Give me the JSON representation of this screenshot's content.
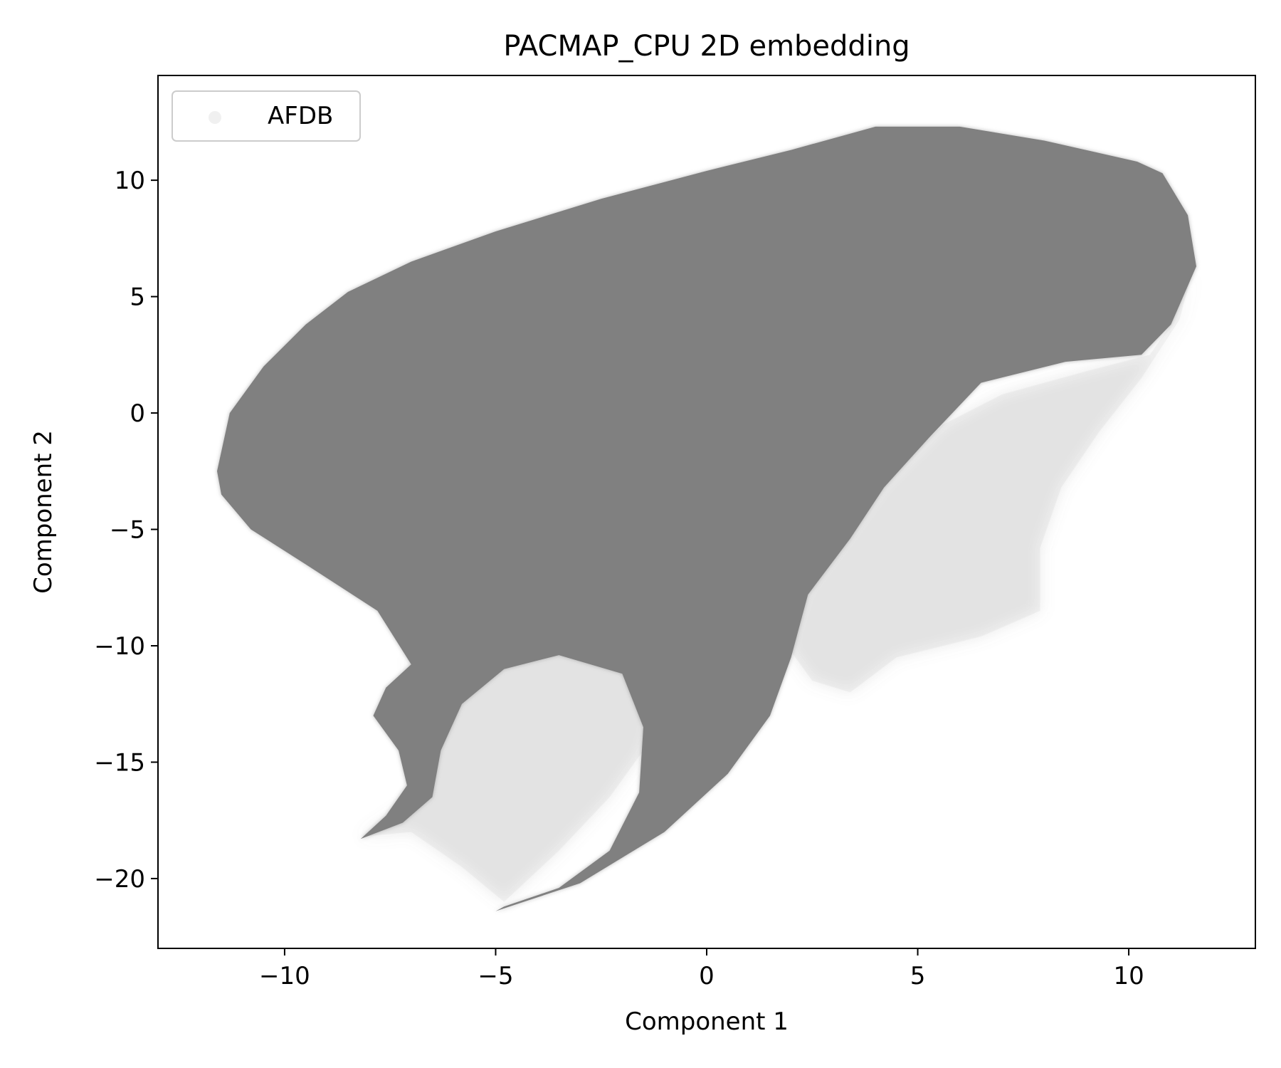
{
  "chart_data": {
    "type": "scatter",
    "title": "PACMAP_CPU 2D embedding",
    "xlabel": "Component 1",
    "ylabel": "Component 2",
    "xlim": [
      -13,
      13
    ],
    "ylim": [
      -23,
      14.5
    ],
    "xticks": [
      -10,
      -5,
      0,
      5,
      10
    ],
    "yticks": [
      10,
      5,
      0,
      -5,
      -10,
      -15,
      -20
    ],
    "xtick_labels": [
      "−10",
      "−5",
      "0",
      "5",
      "10"
    ],
    "ytick_labels": [
      "10",
      "5",
      "0",
      "−5",
      "−10",
      "−15",
      "−20"
    ],
    "grid": false,
    "legend_position": "top-left",
    "marker_color": "#808080",
    "series": [
      {
        "name": "AFDB",
        "color": "#808080",
        "dense_region": [
          [
            -11.6,
            -2.5
          ],
          [
            -11.3,
            0
          ],
          [
            -10.5,
            2
          ],
          [
            -9.5,
            3.8
          ],
          [
            -8.5,
            5.2
          ],
          [
            -7,
            6.5
          ],
          [
            -5,
            7.8
          ],
          [
            -2.5,
            9.2
          ],
          [
            0,
            10.4
          ],
          [
            2,
            11.3
          ],
          [
            4,
            12.3
          ],
          [
            6,
            12.3
          ],
          [
            8,
            11.7
          ],
          [
            10.2,
            10.8
          ],
          [
            10.8,
            10.3
          ],
          [
            11.4,
            8.5
          ],
          [
            11.6,
            6.3
          ],
          [
            11.0,
            3.8
          ],
          [
            10.3,
            2.5
          ],
          [
            8.5,
            2.2
          ],
          [
            6.5,
            1.3
          ],
          [
            5.3,
            -1.0
          ],
          [
            4.2,
            -3.2
          ],
          [
            3.4,
            -5.4
          ],
          [
            2.4,
            -7.8
          ],
          [
            2.0,
            -10.5
          ],
          [
            1.5,
            -13.0
          ],
          [
            0.5,
            -15.5
          ],
          [
            -1.0,
            -18.0
          ],
          [
            -3.0,
            -20.2
          ],
          [
            -5.0,
            -21.4
          ],
          [
            -4.8,
            -21.2
          ],
          [
            -3.5,
            -20.4
          ],
          [
            -2.3,
            -18.8
          ],
          [
            -1.6,
            -16.3
          ],
          [
            -1.5,
            -13.5
          ],
          [
            -2.0,
            -11.2
          ],
          [
            -3.5,
            -10.4
          ],
          [
            -4.8,
            -11.0
          ],
          [
            -5.8,
            -12.5
          ],
          [
            -6.3,
            -14.5
          ],
          [
            -6.5,
            -16.5
          ],
          [
            -7.2,
            -17.6
          ],
          [
            -8.2,
            -18.3
          ],
          [
            -7.6,
            -17.3
          ],
          [
            -7.1,
            -16.0
          ],
          [
            -7.3,
            -14.5
          ],
          [
            -7.9,
            -13.0
          ],
          [
            -7.6,
            -11.8
          ],
          [
            -7.0,
            -10.8
          ],
          [
            -7.8,
            -8.5
          ],
          [
            -9.5,
            -6.5
          ],
          [
            -10.8,
            -5.0
          ],
          [
            -11.5,
            -3.5
          ]
        ],
        "sparse_regions": [
          [
            [
              -7.0,
              -10.5
            ],
            [
              -5.0,
              -10.5
            ],
            [
              -3.0,
              -9.8
            ],
            [
              -1.5,
              -10.0
            ],
            [
              -1.2,
              -12.5
            ],
            [
              -1.5,
              -14.5
            ],
            [
              -2.3,
              -16.5
            ],
            [
              -3.5,
              -18.8
            ],
            [
              -4.8,
              -21.0
            ],
            [
              -5.8,
              -19.5
            ],
            [
              -7.0,
              -18.0
            ],
            [
              -8.2,
              -18.2
            ],
            [
              -7.2,
              -17.0
            ],
            [
              -6.6,
              -15.5
            ],
            [
              -6.9,
              -13.0
            ]
          ],
          [
            [
              5.6,
              -0.5
            ],
            [
              7.0,
              0.8
            ],
            [
              9.0,
              1.8
            ],
            [
              10.5,
              2.5
            ],
            [
              11.0,
              3.8
            ],
            [
              11.5,
              6.0
            ],
            [
              11.2,
              4.0
            ],
            [
              10.3,
              1.5
            ],
            [
              9.3,
              -0.8
            ],
            [
              8.4,
              -3.2
            ],
            [
              7.9,
              -5.8
            ],
            [
              7.9,
              -8.5
            ],
            [
              6.5,
              -9.6
            ],
            [
              4.5,
              -10.5
            ],
            [
              3.4,
              -12.0
            ],
            [
              2.5,
              -11.5
            ],
            [
              1.9,
              -10.0
            ],
            [
              2.3,
              -7.6
            ],
            [
              3.3,
              -5.2
            ],
            [
              4.2,
              -3.0
            ]
          ]
        ]
      }
    ]
  }
}
